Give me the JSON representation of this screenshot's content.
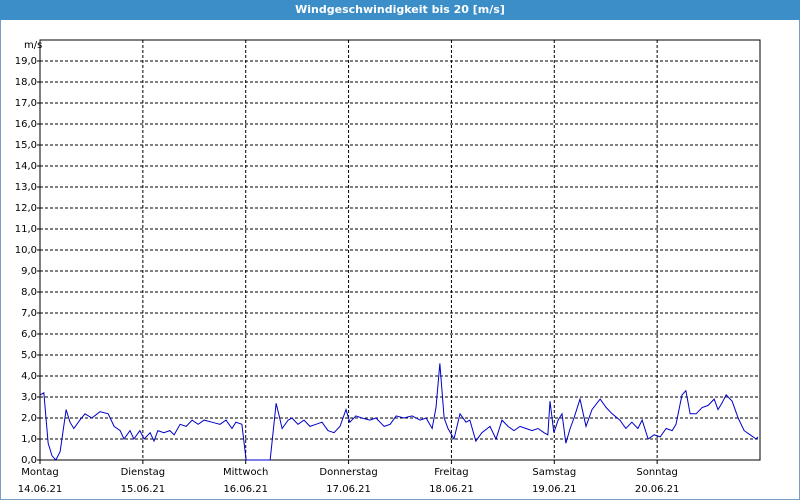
{
  "chart_data": {
    "type": "line",
    "title": "Windgeschwindigkeit bis 20 [m/s]",
    "y_unit": "m/s",
    "xlim": [
      0,
      168
    ],
    "xticks": [
      {
        "value": 0,
        "label": "Montag"
      },
      {
        "value": 24,
        "label": "Dienstag"
      },
      {
        "value": 48,
        "label": "Mittwoch"
      },
      {
        "value": 72,
        "label": "Donnerstag"
      },
      {
        "value": 96,
        "label": "Freitag"
      },
      {
        "value": 120,
        "label": "Samstag"
      },
      {
        "value": 144,
        "label": "Sonntag"
      }
    ],
    "xtick_dates": [
      "14.06.21",
      "15.06.21",
      "16.06.21",
      "17.06.21",
      "18.06.21",
      "19.06.21",
      "20.06.21"
    ],
    "ylim": [
      0,
      20
    ],
    "yticks": [
      {
        "value": 0,
        "label": "0,0"
      },
      {
        "value": 1,
        "label": "1,0"
      },
      {
        "value": 2,
        "label": "2,0"
      },
      {
        "value": 3,
        "label": "3,0"
      },
      {
        "value": 4,
        "label": "4,0"
      },
      {
        "value": 5,
        "label": "5,0"
      },
      {
        "value": 6,
        "label": "6,0"
      },
      {
        "value": 7,
        "label": "7,0"
      },
      {
        "value": 8,
        "label": "8,0"
      },
      {
        "value": 9,
        "label": "9,0"
      },
      {
        "value": 10,
        "label": "10,0"
      },
      {
        "value": 11,
        "label": "11,0"
      },
      {
        "value": 12,
        "label": "12,0"
      },
      {
        "value": 13,
        "label": "13,0"
      },
      {
        "value": 14,
        "label": "14,0"
      },
      {
        "value": 15,
        "label": "15,0"
      },
      {
        "value": 16,
        "label": "16,0"
      },
      {
        "value": 17,
        "label": "17,0"
      },
      {
        "value": 18,
        "label": "18,0"
      },
      {
        "value": 19,
        "label": "19,0"
      }
    ],
    "grid": true,
    "series": [
      {
        "color": "#0000c8",
        "x": [
          0,
          0.9,
          1.9,
          2.8,
          3.7,
          4.7,
          6.1,
          7,
          7.9,
          9.3,
          10.5,
          12.1,
          14,
          15.9,
          17.3,
          18.7,
          19.6,
          21,
          21.9,
          23.3,
          24.3,
          25.7,
          26.6,
          27.5,
          28.9,
          30.3,
          31.3,
          32.7,
          34.1,
          35.5,
          36.9,
          38.3,
          40.1,
          42,
          43.4,
          44.8,
          45.7,
          47.1,
          48.1,
          49,
          50.4,
          51.8,
          53.7,
          55.1,
          56.5,
          57.9,
          58.8,
          60.2,
          61.6,
          63,
          64.4,
          65.8,
          67.2,
          68.6,
          70,
          71.4,
          72.3,
          73.7,
          75.1,
          77,
          78.4,
          80.3,
          81.7,
          83.1,
          84.9,
          86.8,
          88.7,
          90.1,
          91.5,
          92.4,
          93.3,
          94.3,
          95.2,
          96.6,
          98,
          99.4,
          100.3,
          101.7,
          103.1,
          105,
          106.4,
          107.8,
          109.2,
          110.6,
          112,
          113.4,
          114.8,
          116.2,
          117.6,
          118.5,
          119,
          119.9,
          120.9,
          121.8,
          122.7,
          123.7,
          124.6,
          126,
          127.4,
          128.8,
          130.7,
          132.1,
          133.5,
          135.3,
          136.7,
          138.1,
          139.5,
          140.5,
          141.9,
          143.3,
          144.7,
          146.1,
          147.5,
          148.4,
          149.8,
          150.7,
          151.7,
          153.1,
          154.5,
          155.9,
          157.3,
          158.2,
          159.1,
          160.1,
          161.5,
          162.9,
          164.3,
          165.7,
          167.1,
          167.5
        ],
        "values": [
          3.1,
          3.2,
          0.8,
          0.2,
          0,
          0.4,
          2.4,
          1.8,
          1.5,
          1.9,
          2.2,
          2.0,
          2.3,
          2.2,
          1.6,
          1.4,
          1.0,
          1.4,
          1.0,
          1.4,
          1.0,
          1.3,
          0.9,
          1.4,
          1.3,
          1.4,
          1.2,
          1.7,
          1.6,
          1.9,
          1.7,
          1.9,
          1.8,
          1.7,
          1.9,
          1.5,
          1.8,
          1.7,
          0,
          0,
          0,
          0,
          0,
          2.7,
          1.5,
          1.9,
          2.0,
          1.7,
          1.9,
          1.6,
          1.7,
          1.8,
          1.4,
          1.3,
          1.6,
          2.4,
          1.8,
          2.1,
          2.0,
          1.9,
          2.0,
          1.6,
          1.7,
          2.1,
          2.0,
          2.1,
          1.9,
          2.0,
          1.5,
          2.5,
          4.6,
          2.0,
          1.5,
          1.0,
          2.2,
          1.8,
          1.9,
          0.9,
          1.3,
          1.6,
          1.0,
          1.9,
          1.6,
          1.4,
          1.6,
          1.5,
          1.4,
          1.5,
          1.3,
          1.2,
          2.8,
          1.3,
          1.9,
          2.2,
          0.8,
          1.5,
          2.0,
          2.9,
          1.6,
          2.4,
          2.9,
          2.5,
          2.2,
          1.9,
          1.5,
          1.8,
          1.5,
          1.9,
          1.0,
          1.2,
          1.1,
          1.5,
          1.4,
          1.7,
          3.1,
          3.3,
          2.2,
          2.2,
          2.5,
          2.6,
          2.9,
          2.4,
          2.7,
          3.1,
          2.8,
          2.0,
          1.4,
          1.2,
          1.0,
          1.1
        ]
      }
    ]
  }
}
